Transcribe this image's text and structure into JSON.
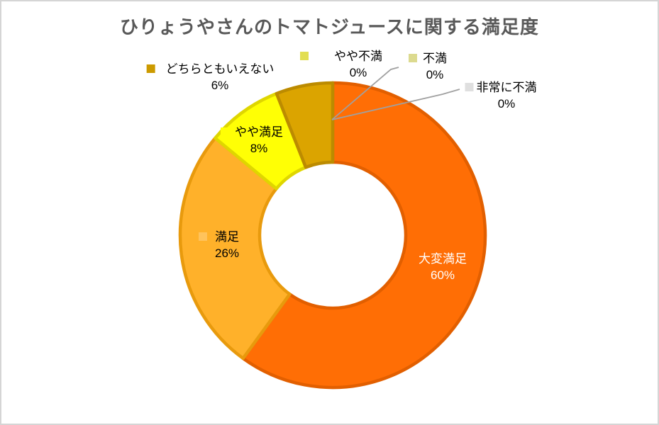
{
  "chart_data": {
    "type": "pie",
    "subtype": "donut",
    "title": "ひりょうやさんのトマトジュースに関する満足度",
    "categories": [
      "大変満足",
      "満足",
      "やや満足",
      "どちらともいえない",
      "やや不満",
      "不満",
      "非常に不満"
    ],
    "values": [
      60,
      26,
      8,
      6,
      0,
      0,
      0
    ],
    "unit": "%",
    "labels": [
      {
        "name": "大変満足",
        "pct": "60%",
        "fill": "#FF6E05",
        "border": "#E25F00",
        "marker": "#FF6E05",
        "text_color": "#FFFFFF"
      },
      {
        "name": "満足",
        "pct": "26%",
        "fill": "#FFB12A",
        "border": "#E89A0D",
        "marker": "#FFC35C",
        "text_color": "#000000"
      },
      {
        "name": "やや満足",
        "pct": "8%",
        "fill": "#FFFF05",
        "border": "#DFD600",
        "marker": "#FFFF05",
        "text_color": "#000000"
      },
      {
        "name": "どちらともいえない",
        "pct": "6%",
        "fill": "#DBA400",
        "border": "#BC8B00",
        "marker": "#CC9A00",
        "text_color": "#000000"
      },
      {
        "name": "やや不満",
        "pct": "0%",
        "fill": "#E2DE52",
        "border": "#E2DE52",
        "marker": "#E2DE52",
        "text_color": "#000000"
      },
      {
        "name": "不満",
        "pct": "0%",
        "fill": "#DCDA8F",
        "border": "#DCDA8F",
        "marker": "#DCDA8F",
        "text_color": "#000000"
      },
      {
        "name": "非常に不満",
        "pct": "0%",
        "fill": "#DFDFDF",
        "border": "#DFDFDF",
        "marker": "#DFDFDF",
        "text_color": "#000000"
      }
    ],
    "legend_position": "none",
    "labels_show_legend_key": true,
    "leader_line_color": "#A0A0A0",
    "background": "#FFFFFF",
    "chart_border_color": "#D5D5D5",
    "title_color": "#595959",
    "hole_ratio": 0.48
  }
}
